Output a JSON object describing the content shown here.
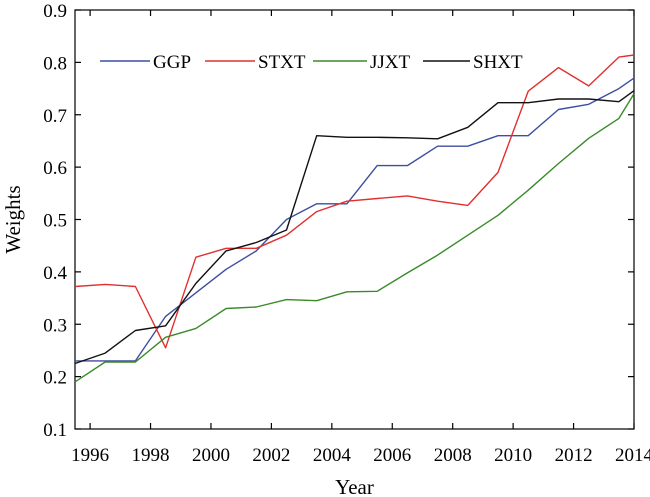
{
  "chart_data": {
    "type": "line",
    "title": "",
    "xlabel": "Year",
    "ylabel": "Weights",
    "xlim": [
      1995.5,
      2014
    ],
    "ylim": [
      0.1,
      0.9
    ],
    "yticks": [
      0.1,
      0.2,
      0.3,
      0.4,
      0.5,
      0.6,
      0.7,
      0.8,
      0.9
    ],
    "xticks": [
      1996,
      1998,
      2000,
      2002,
      2004,
      2006,
      2008,
      2010,
      2012,
      2014
    ],
    "grid": false,
    "legend_placement": "top-left",
    "x": [
      1995.5,
      1996.5,
      1997.5,
      1998.5,
      1999.5,
      2000.5,
      2001.5,
      2002.5,
      2003.5,
      2004.5,
      2005.5,
      2006.5,
      2007.5,
      2008.5,
      2009.5,
      2010.5,
      2011.5,
      2012.5,
      2013.5,
      2014
    ],
    "series": [
      {
        "name": "GGP",
        "color": "#3d4fa0",
        "values": [
          0.23,
          0.23,
          0.23,
          0.315,
          0.36,
          0.405,
          0.44,
          0.5,
          0.53,
          0.53,
          0.603,
          0.603,
          0.64,
          0.64,
          0.66,
          0.66,
          0.71,
          0.72,
          0.75,
          0.77
        ]
      },
      {
        "name": "STXT",
        "color": "#e03030",
        "values": [
          0.372,
          0.376,
          0.372,
          0.255,
          0.428,
          0.445,
          0.445,
          0.47,
          0.515,
          0.535,
          0.54,
          0.545,
          0.535,
          0.527,
          0.59,
          0.745,
          0.79,
          0.755,
          0.81,
          0.814
        ]
      },
      {
        "name": "JJXT",
        "color": "#3a8a2a",
        "values": [
          0.19,
          0.228,
          0.228,
          0.275,
          0.292,
          0.33,
          0.333,
          0.347,
          0.345,
          0.362,
          0.363,
          0.398,
          0.432,
          0.47,
          0.508,
          0.556,
          0.607,
          0.655,
          0.693,
          0.74
        ]
      },
      {
        "name": "SHXT",
        "color": "#111111",
        "values": [
          0.225,
          0.245,
          0.288,
          0.297,
          0.378,
          0.44,
          0.456,
          0.48,
          0.66,
          0.657,
          0.657,
          0.656,
          0.654,
          0.676,
          0.723,
          0.723,
          0.73,
          0.73,
          0.725,
          0.746
        ]
      }
    ]
  }
}
